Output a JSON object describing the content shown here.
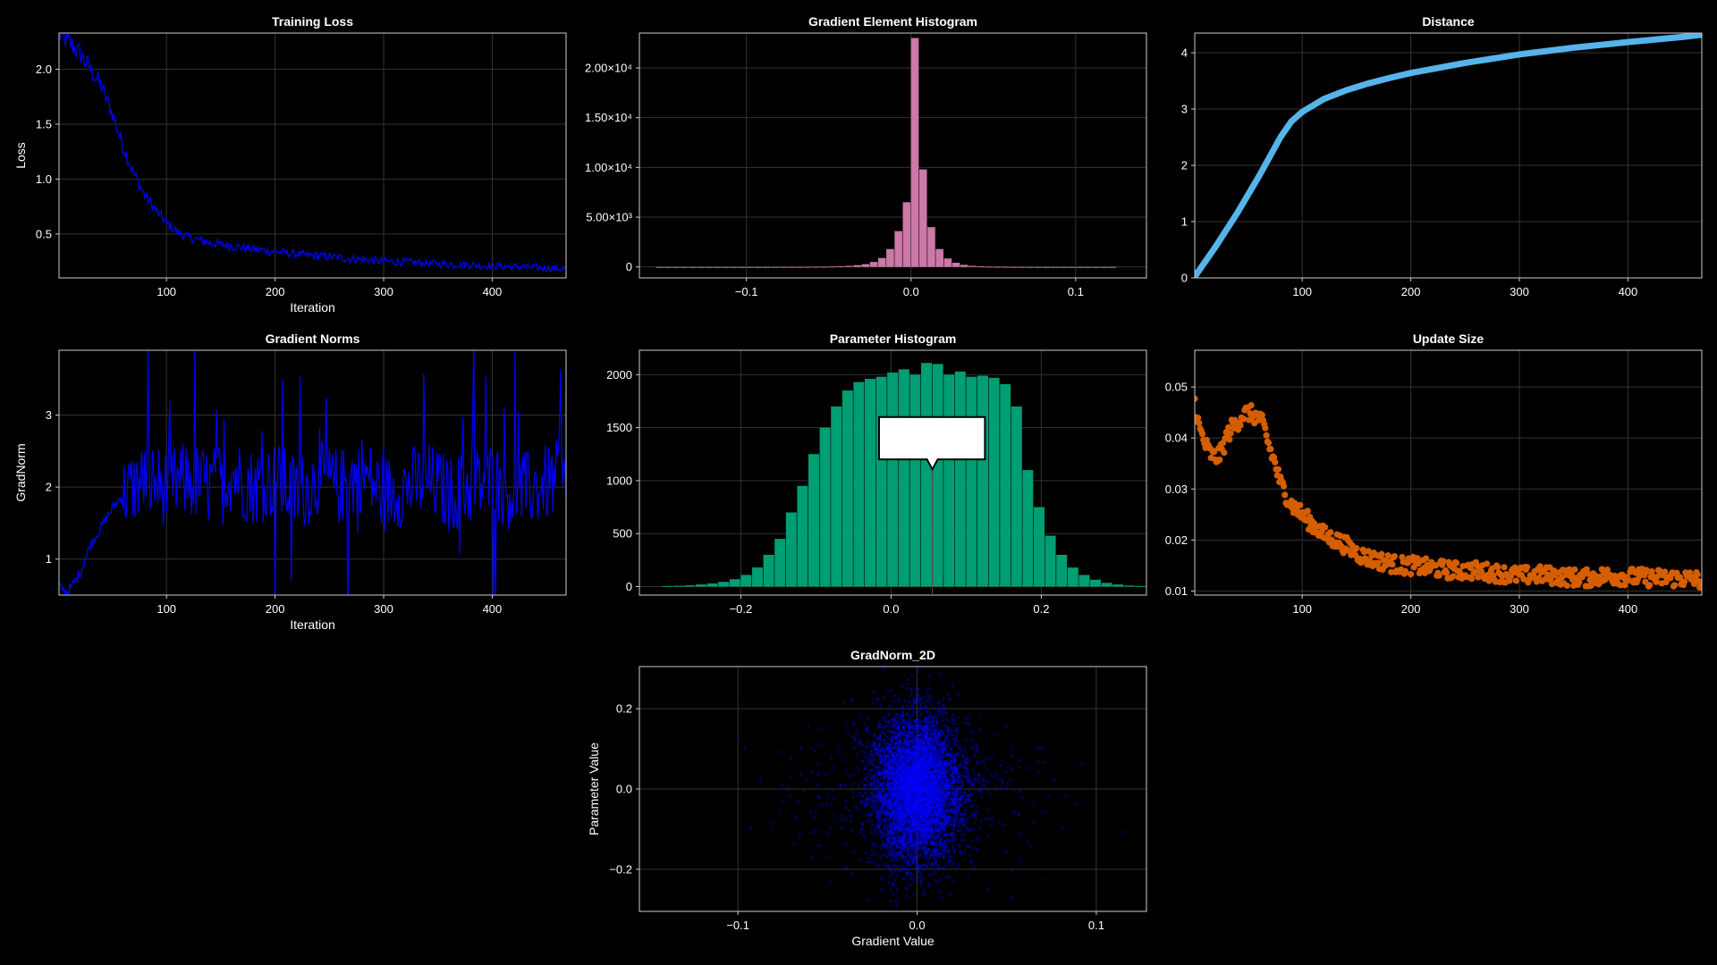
{
  "colors": {
    "background": "#000000",
    "grid": "#333333",
    "frame": "#cccccc",
    "text": "#ffffff",
    "loss_line": "#0000ff",
    "gradnorm_line": "#0000ff",
    "grad_hist": "#cc79a7",
    "param_hist": "#009e73",
    "distance": "#56b4e9",
    "update": "#d55e00",
    "scatter": "#0000ff",
    "tooltip_bg": "#ffffff",
    "tooltip_border": "#000000"
  },
  "chart_data": [
    {
      "id": "training-loss",
      "type": "line",
      "title": "Training Loss",
      "xlabel": "Iteration",
      "ylabel": "Loss",
      "xlim": [
        1,
        468
      ],
      "ylim": [
        0.1,
        2.33
      ],
      "xticks": [
        100,
        200,
        300,
        400
      ],
      "xticklabels": [
        "100",
        "200",
        "300",
        "400"
      ],
      "yticks": [
        0.5,
        1.0,
        1.5,
        2.0
      ],
      "yticklabels": [
        "0.5",
        "1.0",
        "1.5",
        "2.0"
      ],
      "color": "#0000ff",
      "x": [
        1,
        10,
        20,
        30,
        40,
        50,
        60,
        70,
        80,
        90,
        100,
        110,
        120,
        140,
        160,
        180,
        200,
        225,
        250,
        275,
        300,
        325,
        350,
        375,
        400,
        425,
        450,
        468
      ],
      "y": [
        2.31,
        2.25,
        2.15,
        2.0,
        1.85,
        1.6,
        1.3,
        1.05,
        0.85,
        0.72,
        0.6,
        0.52,
        0.47,
        0.42,
        0.39,
        0.36,
        0.34,
        0.31,
        0.29,
        0.27,
        0.25,
        0.24,
        0.23,
        0.22,
        0.21,
        0.2,
        0.19,
        0.18
      ]
    },
    {
      "id": "gradient-element-histogram",
      "type": "bar",
      "title": "Gradient Element Histogram",
      "xlim": [
        -0.165,
        0.143
      ],
      "ylim": [
        -1100,
        23500
      ],
      "xticks": [
        -0.1,
        0.0,
        0.1
      ],
      "xticklabels": [
        "−0.1",
        "0.0",
        "0.1"
      ],
      "yticks": [
        0,
        5000,
        10000,
        15000,
        20000
      ],
      "yticklabels": [
        "0",
        "5.00×10³",
        "1.00×10⁴",
        "1.50×10⁴",
        "2.00×10⁴"
      ],
      "color": "#cc79a7",
      "bin_width": 0.005,
      "bin_start": -0.155,
      "values": [
        3,
        3,
        3,
        3,
        3,
        3,
        3,
        3,
        3,
        3,
        3,
        4,
        4,
        5,
        6,
        8,
        10,
        12,
        15,
        20,
        30,
        45,
        70,
        110,
        180,
        280,
        500,
        900,
        1800,
        3600,
        6500,
        23000,
        9800,
        4000,
        1800,
        850,
        420,
        210,
        110,
        60,
        35,
        22,
        15,
        10,
        8,
        6,
        5,
        4,
        3,
        3,
        3,
        3,
        3,
        3,
        3,
        3
      ]
    },
    {
      "id": "distance",
      "type": "line",
      "title": "Distance",
      "xlim": [
        1,
        468
      ],
      "ylim": [
        0,
        4.35
      ],
      "xticks": [
        100,
        200,
        300,
        400
      ],
      "xticklabels": [
        "100",
        "200",
        "300",
        "400"
      ],
      "yticks": [
        0,
        1,
        2,
        3,
        4
      ],
      "yticklabels": [
        "0",
        "1",
        "2",
        "3",
        "4"
      ],
      "color": "#56b4e9",
      "x": [
        1,
        20,
        40,
        60,
        70,
        80,
        90,
        100,
        120,
        140,
        160,
        180,
        200,
        250,
        300,
        350,
        400,
        450,
        468
      ],
      "y": [
        0.02,
        0.55,
        1.15,
        1.8,
        2.15,
        2.5,
        2.78,
        2.95,
        3.18,
        3.33,
        3.45,
        3.55,
        3.64,
        3.82,
        3.97,
        4.09,
        4.19,
        4.28,
        4.32
      ]
    },
    {
      "id": "gradient-norms",
      "type": "line",
      "title": "Gradient Norms",
      "xlabel": "Iteration",
      "ylabel": "GradNorm",
      "xlim": [
        1,
        468
      ],
      "ylim": [
        0.5,
        3.9
      ],
      "xticks": [
        100,
        200,
        300,
        400
      ],
      "xticklabels": [
        "100",
        "200",
        "300",
        "400"
      ],
      "yticks": [
        1,
        2,
        3
      ],
      "yticklabels": [
        "1",
        "2",
        "3"
      ],
      "color": "#0000ff",
      "x": [
        1,
        10,
        20,
        30,
        40,
        50,
        60,
        80,
        100,
        120,
        140,
        160,
        180,
        200,
        220,
        240,
        260,
        280,
        300,
        320,
        340,
        360,
        380,
        400,
        420,
        440,
        460,
        468
      ],
      "y": [
        0.6,
        0.55,
        0.8,
        1.2,
        1.45,
        1.7,
        1.9,
        2.1,
        2.0,
        2.1,
        2.0,
        2.2,
        2.0,
        2.1,
        1.9,
        2.1,
        2.0,
        2.2,
        1.9,
        2.0,
        2.1,
        1.9,
        2.0,
        2.1,
        1.9,
        2.0,
        2.1,
        2.0
      ]
    },
    {
      "id": "parameter-histogram",
      "type": "bar",
      "title": "Parameter Histogram",
      "xlim": [
        -0.335,
        0.34
      ],
      "ylim": [
        -80,
        2230
      ],
      "xticks": [
        -0.2,
        0.0,
        0.2
      ],
      "xticklabels": [
        "−0.2",
        "0.0",
        "0.2"
      ],
      "yticks": [
        0,
        500,
        1000,
        1500,
        2000
      ],
      "yticklabels": [
        "0",
        "500",
        "1000",
        "1500",
        "2000"
      ],
      "color": "#009e73",
      "bin_width": 0.015,
      "bin_start": -0.305,
      "values": [
        5,
        8,
        12,
        20,
        30,
        45,
        70,
        110,
        180,
        300,
        450,
        700,
        950,
        1250,
        1500,
        1700,
        1850,
        1930,
        1960,
        1980,
        2020,
        2050,
        2000,
        2110,
        2100,
        2000,
        2030,
        1980,
        1990,
        1970,
        1910,
        1700,
        1100,
        750,
        480,
        300,
        180,
        110,
        65,
        35,
        20,
        10,
        5,
        3
      ],
      "tooltip_visible": true
    },
    {
      "id": "update-size",
      "type": "scatter",
      "title": "Update Size",
      "xlim": [
        1,
        468
      ],
      "ylim": [
        0.0092,
        0.0572
      ],
      "xticks": [
        100,
        200,
        300,
        400
      ],
      "xticklabels": [
        "100",
        "200",
        "300",
        "400"
      ],
      "yticks": [
        0.01,
        0.02,
        0.03,
        0.04,
        0.05
      ],
      "yticklabels": [
        "0.01",
        "0.02",
        "0.03",
        "0.04",
        "0.05"
      ],
      "color": "#d55e00",
      "x": [
        1,
        5,
        10,
        15,
        20,
        25,
        30,
        35,
        40,
        45,
        50,
        55,
        60,
        65,
        70,
        75,
        80,
        85,
        90,
        95,
        100,
        110,
        120,
        130,
        140,
        150,
        160,
        170,
        180,
        190,
        200,
        220,
        240,
        260,
        280,
        300,
        320,
        340,
        360,
        380,
        400,
        420,
        440,
        460,
        468
      ],
      "y": [
        0.047,
        0.042,
        0.039,
        0.037,
        0.036,
        0.037,
        0.04,
        0.042,
        0.043,
        0.0445,
        0.045,
        0.0445,
        0.044,
        0.042,
        0.038,
        0.035,
        0.031,
        0.029,
        0.027,
        0.026,
        0.025,
        0.023,
        0.021,
        0.02,
        0.019,
        0.0175,
        0.0165,
        0.016,
        0.0155,
        0.015,
        0.015,
        0.0145,
        0.014,
        0.014,
        0.0135,
        0.013,
        0.0132,
        0.0128,
        0.0125,
        0.013,
        0.0128,
        0.0126,
        0.0125,
        0.0124,
        0.012
      ]
    },
    {
      "id": "gradnorm-2d",
      "type": "scatter",
      "title": "GradNorm_2D",
      "xlabel": "Gradient Value",
      "ylabel": "Parameter Value",
      "xlim": [
        -0.155,
        0.128
      ],
      "ylim": [
        -0.305,
        0.305
      ],
      "xticks": [
        -0.1,
        0.0,
        0.1
      ],
      "xticklabels": [
        "−0.1",
        "0.0",
        "0.1"
      ],
      "yticks": [
        -0.2,
        0.0,
        0.2
      ],
      "yticklabels": [
        "−0.2",
        "0.0",
        "0.2"
      ],
      "color": "#0000ff",
      "x_center": 0.0,
      "x_spread": 0.012,
      "y_center": 0.0,
      "y_spread": 0.09
    }
  ]
}
